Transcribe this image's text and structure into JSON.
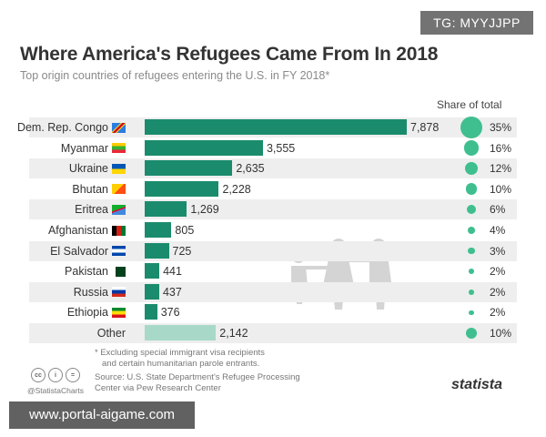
{
  "chart_data": {
    "type": "bar",
    "orientation": "horizontal",
    "title": "Where America's Refugees Came From In 2018",
    "subtitle": "Top origin countries of refugees entering the U.S. in FY 2018*",
    "share_header": "Share of total",
    "categories": [
      "Dem. Rep. Congo",
      "Myanmar",
      "Ukraine",
      "Bhutan",
      "Eritrea",
      "Afghanistan",
      "El Salvador",
      "Pakistan",
      "Russia",
      "Ethiopia",
      "Other"
    ],
    "values": [
      7878,
      3555,
      2635,
      2228,
      1269,
      805,
      725,
      441,
      437,
      376,
      2142
    ],
    "value_labels": [
      "7,878",
      "3,555",
      "2,635",
      "2,228",
      "1,269",
      "805",
      "725",
      "441",
      "437",
      "376",
      "2,142"
    ],
    "shares": [
      35,
      16,
      12,
      10,
      6,
      4,
      3,
      2,
      2,
      2,
      10
    ],
    "share_labels": [
      "35%",
      "16%",
      "12%",
      "10%",
      "6%",
      "4%",
      "3%",
      "2%",
      "2%",
      "2%",
      "10%"
    ],
    "xlim": [
      0,
      8000
    ]
  },
  "footnote": [
    "* Excluding special immigrant visa recipients",
    "and certain humanitarian parole entrants."
  ],
  "source": [
    "Source: U.S. State Department's Refugee Processing",
    "Center via Pew Research Center"
  ],
  "handle": "@StatistaCharts",
  "logo": "statista",
  "watermark_top": "TG: MYYJJPP",
  "watermark_bottom": "www.portal-aigame.com",
  "colors": {
    "bar": "#1a8c6d",
    "bar_other": "#a8d9c8",
    "dot": "#3fbf8f",
    "stripe": "#eeeeee"
  }
}
